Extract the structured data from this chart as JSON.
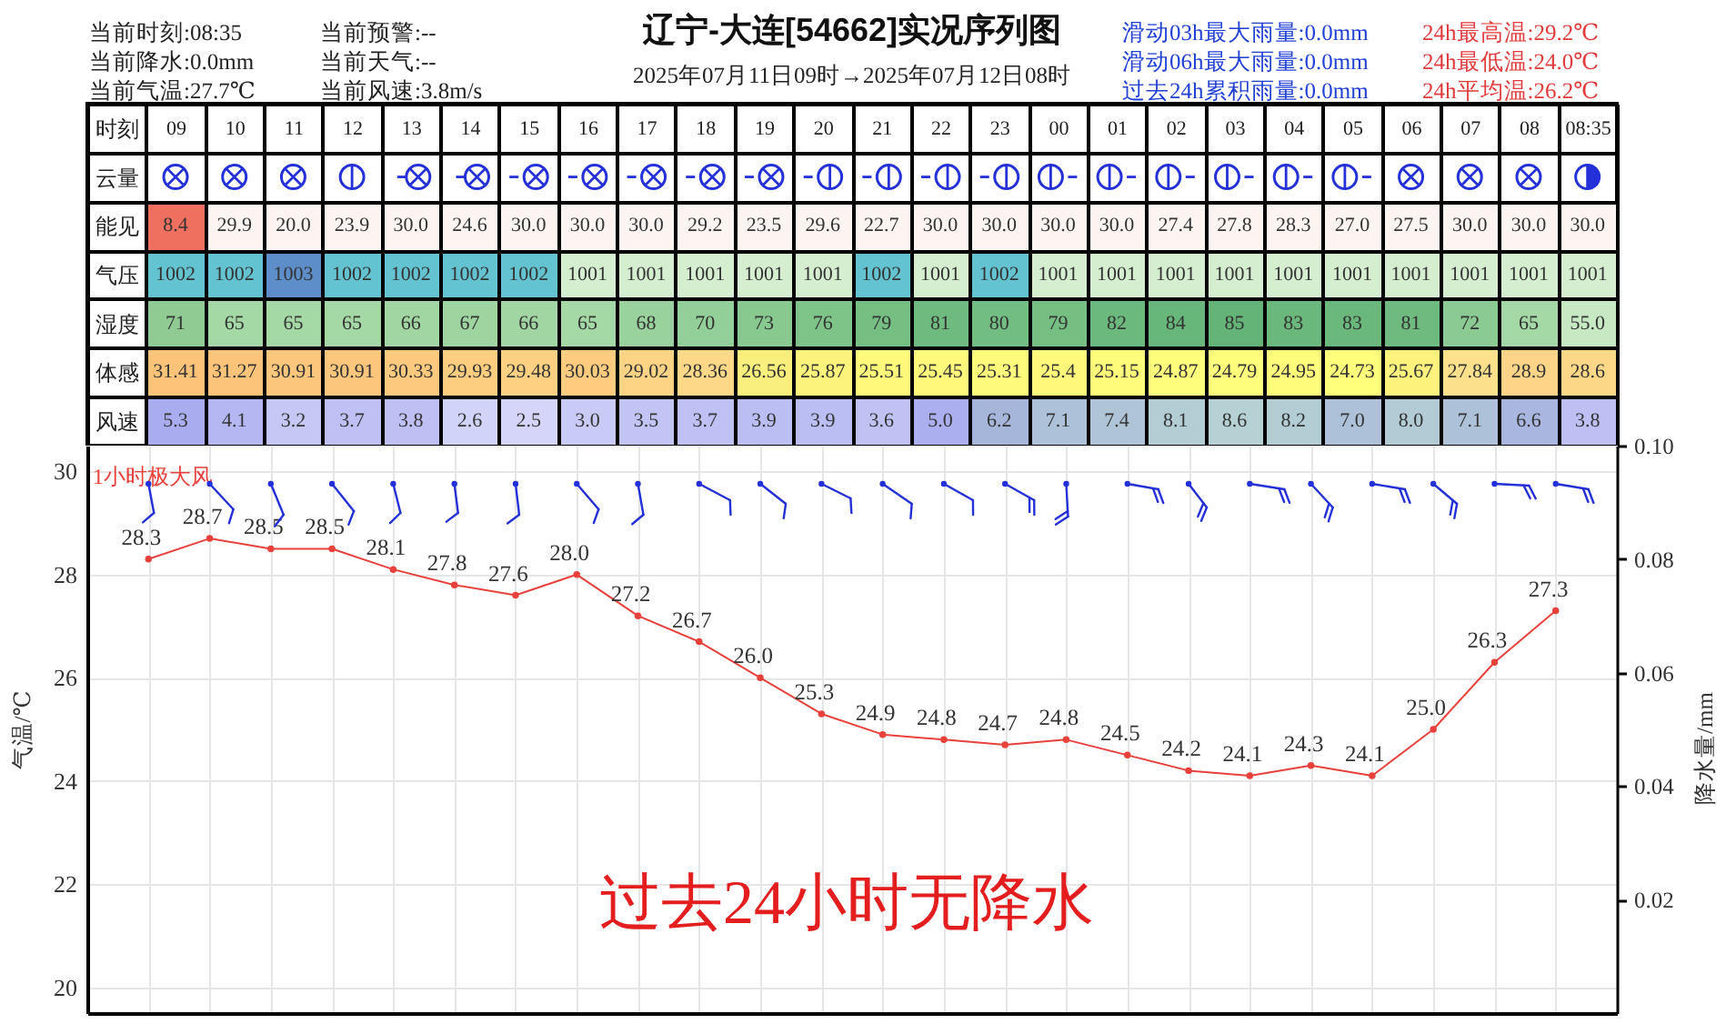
{
  "chart_data": [
    {
      "type": "heatmap",
      "title": "辽宁-大连[54662]实况序列图",
      "subtitle": "2025年07月11日09时→2025年07月12日08时",
      "xlabel": "时刻",
      "categories": [
        "09",
        "10",
        "11",
        "12",
        "13",
        "14",
        "15",
        "16",
        "17",
        "18",
        "19",
        "20",
        "21",
        "22",
        "23",
        "00",
        "01",
        "02",
        "03",
        "04",
        "05",
        "06",
        "07",
        "08",
        "08:35"
      ],
      "y_categories": [
        "云量",
        "能见",
        "气压",
        "湿度",
        "体感",
        "风速"
      ],
      "cells": [
        [
          null,
          null,
          null,
          null,
          null,
          null,
          null,
          null,
          null,
          null,
          null,
          null,
          null,
          null,
          null,
          null,
          null,
          null,
          null,
          null,
          null,
          null,
          null,
          null,
          null
        ],
        [
          8.4,
          29.9,
          20.0,
          23.9,
          30.0,
          24.6,
          30.0,
          30.0,
          30.0,
          29.2,
          23.5,
          29.6,
          22.7,
          30.0,
          30.0,
          30.0,
          30.0,
          27.4,
          27.8,
          28.3,
          27.0,
          27.5,
          30.0,
          30.0,
          30.0
        ],
        [
          1002,
          1002,
          1003,
          1002,
          1002,
          1002,
          1002,
          1001,
          1001,
          1001,
          1001,
          1001,
          1002,
          1001,
          1002,
          1001,
          1001,
          1001,
          1001,
          1001,
          1001,
          1001,
          1001,
          1001,
          1001
        ],
        [
          71,
          65,
          65,
          65,
          66,
          67,
          66,
          65,
          68,
          70,
          73,
          76,
          79,
          81,
          80,
          79,
          82,
          84,
          85,
          83,
          83,
          81,
          72,
          65,
          55.0
        ],
        [
          31.41,
          31.27,
          30.91,
          30.91,
          30.33,
          29.93,
          29.48,
          30.03,
          29.02,
          28.36,
          26.56,
          25.87,
          25.51,
          25.45,
          25.31,
          25.4,
          25.15,
          24.87,
          24.79,
          24.95,
          24.73,
          25.67,
          27.84,
          28.9,
          28.6
        ],
        [
          5.3,
          4.1,
          3.2,
          3.7,
          3.8,
          2.6,
          2.5,
          3.0,
          3.5,
          3.7,
          3.9,
          3.9,
          3.6,
          5.0,
          6.2,
          7.1,
          7.4,
          8.1,
          8.6,
          8.2,
          7.0,
          8.0,
          7.1,
          6.6,
          3.8
        ]
      ],
      "cell_labels": [
        [
          null,
          null,
          null,
          null,
          null,
          null,
          null,
          null,
          null,
          null,
          null,
          null,
          null,
          null,
          null,
          null,
          null,
          null,
          null,
          null,
          null,
          null,
          null,
          null,
          null
        ],
        [
          "8.4",
          "29.9",
          "20.0",
          "23.9",
          "30.0",
          "24.6",
          "30.0",
          "30.0",
          "30.0",
          "29.2",
          "23.5",
          "29.6",
          "22.7",
          "30.0",
          "30.0",
          "30.0",
          "30.0",
          "27.4",
          "27.8",
          "28.3",
          "27.0",
          "27.5",
          "30.0",
          "30.0",
          "30.0"
        ],
        [
          "1002",
          "1002",
          "1003",
          "1002",
          "1002",
          "1002",
          "1002",
          "1001",
          "1001",
          "1001",
          "1001",
          "1001",
          "1002",
          "1001",
          "1002",
          "1001",
          "1001",
          "1001",
          "1001",
          "1001",
          "1001",
          "1001",
          "1001",
          "1001",
          "1001"
        ],
        [
          "71",
          "65",
          "65",
          "65",
          "66",
          "67",
          "66",
          "65",
          "68",
          "70",
          "73",
          "76",
          "79",
          "81",
          "80",
          "79",
          "82",
          "84",
          "85",
          "83",
          "83",
          "81",
          "72",
          "65",
          "55.0"
        ],
        [
          "31.41",
          "31.27",
          "30.91",
          "30.91",
          "30.33",
          "29.93",
          "29.48",
          "30.03",
          "29.02",
          "28.36",
          "26.56",
          "25.87",
          "25.51",
          "25.45",
          "25.31",
          "25.4",
          "25.15",
          "24.87",
          "24.79",
          "24.95",
          "24.73",
          "25.67",
          "27.84",
          "28.9",
          "28.6"
        ],
        [
          "5.3",
          "4.1",
          "3.2",
          "3.7",
          "3.8",
          "2.6",
          "2.5",
          "3.0",
          "3.5",
          "3.7",
          "3.9",
          "3.9",
          "3.6",
          "5.0",
          "6.2",
          "7.1",
          "7.4",
          "8.1",
          "8.6",
          "8.2",
          "7.0",
          "8.0",
          "7.1",
          "6.6",
          "3.8"
        ]
      ],
      "colors": [
        [
          null,
          null,
          null,
          null,
          null,
          null,
          null,
          null,
          null,
          null,
          null,
          null,
          null,
          null,
          null,
          null,
          null,
          null,
          null,
          null,
          null,
          null,
          null,
          null,
          null
        ],
        [
          "#f0705f",
          "#fcf4f1",
          "#fcf4f1",
          "#fcf4f1",
          "#fcf4f1",
          "#fcf4f1",
          "#fcf4f1",
          "#fcf4f1",
          "#fcf4f1",
          "#fcf4f1",
          "#fcf4f1",
          "#fcf4f1",
          "#fcf4f1",
          "#fcf4f1",
          "#fcf4f1",
          "#fcf4f1",
          "#fcf4f1",
          "#fcf4f1",
          "#fcf4f1",
          "#fcf4f1",
          "#fcf4f1",
          "#fcf4f1",
          "#fcf4f1",
          "#fcf4f1",
          "#fcf4f1"
        ],
        [
          "#63c3d0",
          "#63c3d0",
          "#5d8ec9",
          "#63c3d0",
          "#63c3d0",
          "#63c3d0",
          "#63c3d0",
          "#d6eed0",
          "#d6eed0",
          "#d6eed0",
          "#d6eed0",
          "#d6eed0",
          "#63c3d0",
          "#d6eed0",
          "#63c3d0",
          "#d6eed0",
          "#d6eed0",
          "#d6eed0",
          "#d6eed0",
          "#d6eed0",
          "#d6eed0",
          "#d6eed0",
          "#d6eed0",
          "#d6eed0",
          "#d6eed0"
        ],
        [
          "#8fcb93",
          "#a4d8a4",
          "#a4d8a4",
          "#a4d8a4",
          "#a1d6a2",
          "#9dd4a0",
          "#a1d6a2",
          "#a4d8a4",
          "#99d29c",
          "#93cf98",
          "#88c990",
          "#7ec489",
          "#75bf83",
          "#6fbb7f",
          "#72bd81",
          "#75bf83",
          "#6cb97d",
          "#67b67a",
          "#64b478",
          "#6ab87c",
          "#6ab87c",
          "#6fbb7f",
          "#8bca92",
          "#a4d8a4",
          "#c6e8c2"
        ],
        [
          "#fcc379",
          "#fcc47a",
          "#fcc77c",
          "#fcc77c",
          "#fcca7e",
          "#fdcd80",
          "#fdd082",
          "#fdcc7f",
          "#fdd385",
          "#fdd888",
          "#f9ef7c",
          "#fbf47c",
          "#fef87b",
          "#fef87b",
          "#fefa7b",
          "#fef97b",
          "#fffb7b",
          "#fffd7c",
          "#fffe7c",
          "#fffc7c",
          "#ffff7c",
          "#fdf37c",
          "#fde08b",
          "#fdd488",
          "#fdd788"
        ],
        [
          "#a9adef",
          "#b4b7f1",
          "#c5c7f5",
          "#bfc1f4",
          "#bec0f4",
          "#d2d3f8",
          "#d4d5f8",
          "#c9caf6",
          "#c2c4f5",
          "#bfc1f4",
          "#bbbef3",
          "#bbbef3",
          "#c0c2f4",
          "#abaff0",
          "#a6b6da",
          "#adc2d8",
          "#afc5d7",
          "#b3cdd4",
          "#b5d1d3",
          "#b3cdd4",
          "#adc1d8",
          "#b2cbd5",
          "#adc2d8",
          "#a9b6e0",
          "#bec0f4"
        ]
      ],
      "annotations": [
        "当前时刻:08:35",
        "当前降水:0.0mm",
        "当前气温:27.7℃",
        "当前预警:--",
        "当前天气:--",
        "当前风速:3.8m/s",
        "滑动03h最大雨量:0.0mm",
        "滑动06h最大雨量:0.0mm",
        "过去24h累积雨量:0.0mm",
        "24h最高温:29.2℃",
        "24h最低温:24.0℃",
        "24h平均温:26.2℃"
      ]
    },
    {
      "type": "line",
      "ylabel": "气温/℃",
      "y2label": "降水量/mm",
      "categories": [
        null,
        null,
        null,
        null,
        null,
        null,
        null,
        null,
        null,
        null,
        null,
        null,
        null,
        null,
        null,
        null,
        null,
        null,
        null,
        null,
        null,
        null,
        null,
        null
      ],
      "values": [
        28.3,
        28.7,
        28.5,
        28.5,
        28.1,
        27.8,
        27.6,
        28.0,
        27.2,
        26.7,
        26.0,
        25.3,
        24.9,
        24.8,
        24.7,
        24.8,
        24.5,
        24.2,
        24.1,
        24.3,
        24.1,
        25.0,
        26.3,
        27.3
      ],
      "value_labels": [
        "28.3",
        "28.7",
        "28.5",
        "28.5",
        "28.1",
        "27.8",
        "27.6",
        "28.0",
        "27.2",
        "26.7",
        "26.0",
        "25.3",
        "24.9",
        "24.8",
        "24.7",
        "24.8",
        "24.5",
        "24.2",
        "24.1",
        "24.3",
        "24.1",
        "25.0",
        "26.3",
        "27.3"
      ],
      "color": "#e8413c",
      "marker": "circle",
      "ylim": [
        19.5,
        30.5
      ],
      "yticks": [
        20,
        22,
        24,
        26,
        28,
        30
      ],
      "y2lim": [
        0,
        0.1
      ],
      "y2ticks": [
        0.02,
        0.04,
        0.06,
        0.08,
        {
          "value": 0.1,
          "label": "0.10"
        }
      ],
      "grid": true,
      "annotations": [
        "1小时极大风",
        "过去24小时无降水"
      ]
    }
  ]
}
